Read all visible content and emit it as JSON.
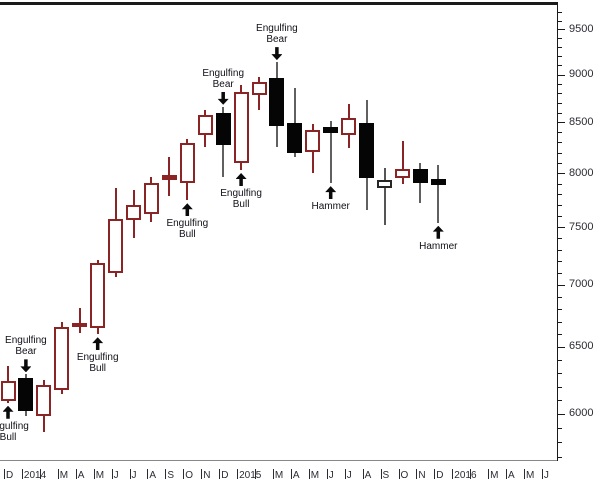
{
  "colors": {
    "background": "#ffffff",
    "bull_candle": "#8b2525",
    "bear_candle_fill": "#050505",
    "bear_wick": "#606060",
    "neutral_candle_border": "#262626",
    "axis_line": "#1a1a1a",
    "axis_label": "#2b2b34",
    "annotation_text": "#101018",
    "annotation_arrow": "#0a0a0a",
    "bottom_separator": "#888888"
  },
  "chart_data": {
    "type": "candlestick",
    "title": "",
    "y_axis": {
      "side": "right",
      "scale": "log",
      "tick_labels": [
        "9500",
        "9000",
        "8500",
        "8000",
        "7500",
        "7000",
        "6500",
        "6000"
      ],
      "minor_tick_step": 100,
      "minor_tick_range": [
        5700,
        9800
      ]
    },
    "x_axis": {
      "slot_count": 31,
      "labels": [
        {
          "slot": 0,
          "text": "D"
        },
        {
          "slot": 1,
          "text": "2014"
        },
        {
          "slot": 3,
          "text": "M"
        },
        {
          "slot": 4,
          "text": "A"
        },
        {
          "slot": 5,
          "text": "M"
        },
        {
          "slot": 6,
          "text": "J"
        },
        {
          "slot": 7,
          "text": "J"
        },
        {
          "slot": 8,
          "text": "A"
        },
        {
          "slot": 9,
          "text": "S"
        },
        {
          "slot": 10,
          "text": "O"
        },
        {
          "slot": 11,
          "text": "N"
        },
        {
          "slot": 12,
          "text": "D"
        },
        {
          "slot": 13,
          "text": "2015"
        },
        {
          "slot": 15,
          "text": "M"
        },
        {
          "slot": 16,
          "text": "A"
        },
        {
          "slot": 17,
          "text": "M"
        },
        {
          "slot": 18,
          "text": "J"
        },
        {
          "slot": 19,
          "text": "J"
        },
        {
          "slot": 20,
          "text": "A"
        },
        {
          "slot": 21,
          "text": "S"
        },
        {
          "slot": 22,
          "text": "O"
        },
        {
          "slot": 23,
          "text": "N"
        },
        {
          "slot": 24,
          "text": "D"
        },
        {
          "slot": 25,
          "text": "2016"
        },
        {
          "slot": 27,
          "text": "M"
        },
        {
          "slot": 28,
          "text": "A"
        },
        {
          "slot": 29,
          "text": "M"
        },
        {
          "slot": 30,
          "text": "J"
        }
      ]
    },
    "candles": [
      {
        "month": "Dec 2013",
        "open": 6090,
        "high": 6355,
        "low": 6080,
        "close": 6240,
        "style": "hollow-red",
        "pattern": {
          "lines": [
            "Engulfing",
            "Bull"
          ],
          "position": "below"
        }
      },
      {
        "month": "Jan 2014",
        "open": 6260,
        "high": 6290,
        "low": 5985,
        "close": 6020,
        "style": "filled-black",
        "pattern": {
          "lines": [
            "Engulfing",
            "Bear"
          ],
          "position": "above"
        }
      },
      {
        "month": "Feb 2014",
        "open": 5985,
        "high": 6250,
        "low": 5875,
        "close": 6215,
        "style": "hollow-red"
      },
      {
        "month": "Mar 2014",
        "open": 6175,
        "high": 6700,
        "low": 6145,
        "close": 6660,
        "style": "hollow-red"
      },
      {
        "month": "Apr 2014",
        "open": 6655,
        "high": 6810,
        "low": 6610,
        "close": 6685,
        "style": "dash-red"
      },
      {
        "month": "May 2014",
        "open": 6650,
        "high": 7210,
        "low": 6600,
        "close": 7185,
        "style": "hollow-red",
        "pattern": {
          "lines": [
            "Engulfing",
            "Bull"
          ],
          "position": "below"
        }
      },
      {
        "month": "Jun 2014",
        "open": 7100,
        "high": 7860,
        "low": 7065,
        "close": 7575,
        "style": "hollow-red"
      },
      {
        "month": "Jul 2014",
        "open": 7565,
        "high": 7840,
        "low": 7400,
        "close": 7700,
        "style": "hollow-red"
      },
      {
        "month": "Aug 2014",
        "open": 7615,
        "high": 7960,
        "low": 7547,
        "close": 7905,
        "style": "hollow-red"
      },
      {
        "month": "Sep 2014",
        "open": 7930,
        "high": 8155,
        "low": 7780,
        "close": 7985,
        "style": "dash-red"
      },
      {
        "month": "Oct 2014",
        "open": 7905,
        "high": 8333,
        "low": 7745,
        "close": 8293,
        "style": "hollow-red",
        "pattern": {
          "lines": [
            "Engulfing",
            "Bull"
          ],
          "position": "below"
        }
      },
      {
        "month": "Nov 2014",
        "open": 8375,
        "high": 8625,
        "low": 8255,
        "close": 8575,
        "style": "hollow-red"
      },
      {
        "month": "Dec 2014",
        "open": 8595,
        "high": 8660,
        "low": 7960,
        "close": 8275,
        "style": "filled-black",
        "pattern": {
          "lines": [
            "Engulfing",
            "Bear"
          ],
          "position": "above"
        }
      },
      {
        "month": "Jan 2015",
        "open": 8100,
        "high": 8890,
        "low": 8030,
        "close": 8815,
        "style": "hollow-red",
        "pattern": {
          "lines": [
            "Engulfing",
            "Bull"
          ],
          "position": "below"
        }
      },
      {
        "month": "Feb 2015",
        "open": 8785,
        "high": 8975,
        "low": 8630,
        "close": 8920,
        "style": "hollow-red"
      },
      {
        "month": "Mar 2015",
        "open": 8960,
        "high": 9135,
        "low": 8255,
        "close": 8460,
        "style": "filled-black",
        "pattern": {
          "lines": [
            "Engulfing",
            "Bear"
          ],
          "position": "above"
        }
      },
      {
        "month": "Apr 2015",
        "open": 8490,
        "high": 8855,
        "low": 8150,
        "close": 8195,
        "style": "filled-black"
      },
      {
        "month": "May 2015",
        "open": 8205,
        "high": 8485,
        "low": 8000,
        "close": 8425,
        "style": "hollow-red"
      },
      {
        "month": "Jun 2015",
        "open": 8455,
        "high": 8510,
        "low": 7905,
        "close": 8395,
        "style": "dash-black",
        "pattern": {
          "lines": [
            "Hammer"
          ],
          "position": "below"
        }
      },
      {
        "month": "Jul 2015",
        "open": 8375,
        "high": 8690,
        "low": 8245,
        "close": 8545,
        "style": "hollow-red"
      },
      {
        "month": "Aug 2015",
        "open": 8490,
        "high": 8730,
        "low": 7655,
        "close": 7955,
        "style": "filled-black"
      },
      {
        "month": "Sep 2015",
        "open": 7860,
        "high": 8050,
        "low": 7520,
        "close": 7935,
        "style": "hollow-black"
      },
      {
        "month": "Oct 2015",
        "open": 7953,
        "high": 8315,
        "low": 7895,
        "close": 8040,
        "style": "hollow-red"
      },
      {
        "month": "Nov 2015",
        "open": 8040,
        "high": 8100,
        "low": 7720,
        "close": 7905,
        "style": "filled-black"
      },
      {
        "month": "Dec 2015",
        "open": 7945,
        "high": 8080,
        "low": 7540,
        "close": 7885,
        "style": "dash-black",
        "pattern": {
          "lines": [
            "Hammer"
          ],
          "position": "below"
        }
      }
    ]
  }
}
